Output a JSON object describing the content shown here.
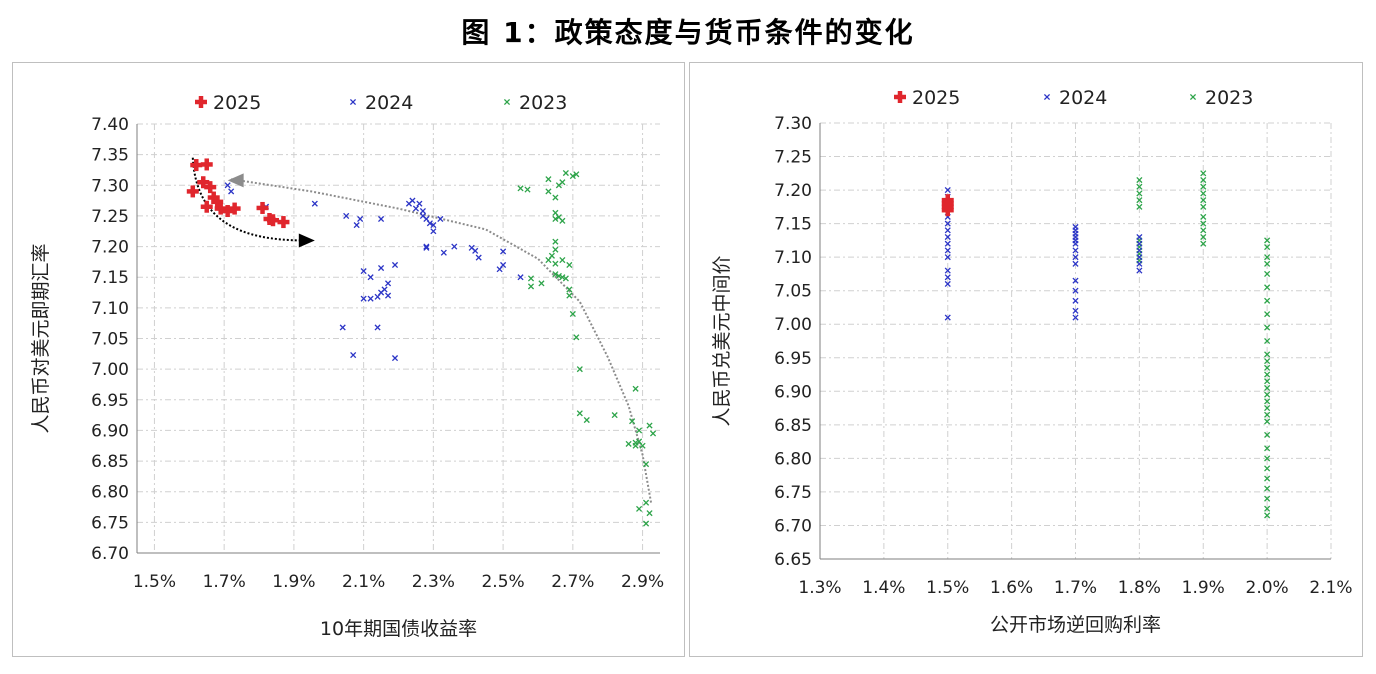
{
  "figure": {
    "title": "图 1：政策态度与货币条件的变化"
  },
  "colors": {
    "y2025": "#e0262d",
    "y2024": "#2b34c6",
    "y2023": "#2ea44a",
    "grid": "#d0d0d0",
    "axis": "#7f7f7f",
    "trend": "#8c8c8c",
    "arrow": "#000000"
  },
  "chart_data": [
    {
      "type": "scatter",
      "ylabel": "人民币对美元即期汇率",
      "xlabel": "10年期国债收益率",
      "xlim": [
        1.45,
        2.95
      ],
      "ylim": [
        6.7,
        7.4
      ],
      "x_ticks": [
        1.5,
        1.7,
        1.9,
        2.1,
        2.3,
        2.5,
        2.7,
        2.9
      ],
      "x_tick_labels": [
        "1.5%",
        "1.7%",
        "1.9%",
        "2.1%",
        "2.3%",
        "2.5%",
        "2.7%",
        "2.9%"
      ],
      "y_ticks": [
        6.7,
        6.75,
        6.8,
        6.85,
        6.9,
        6.95,
        7.0,
        7.05,
        7.1,
        7.15,
        7.2,
        7.25,
        7.3,
        7.35,
        7.4
      ],
      "y_tick_labels": [
        "6.70",
        "6.75",
        "6.80",
        "6.85",
        "6.90",
        "6.95",
        "7.00",
        "7.05",
        "7.10",
        "7.15",
        "7.20",
        "7.25",
        "7.30",
        "7.35",
        "7.40"
      ],
      "legend_position": "top",
      "series": [
        {
          "name": "2025",
          "marker": "plus",
          "color": "#e0262d",
          "points": [
            [
              1.62,
              7.333
            ],
            [
              1.65,
              7.334
            ],
            [
              1.64,
              7.305
            ],
            [
              1.66,
              7.297
            ],
            [
              1.61,
              7.29
            ],
            [
              1.67,
              7.28
            ],
            [
              1.68,
              7.273
            ],
            [
              1.65,
              7.265
            ],
            [
              1.69,
              7.262
            ],
            [
              1.71,
              7.258
            ],
            [
              1.73,
              7.262
            ],
            [
              1.81,
              7.263
            ],
            [
              1.83,
              7.245
            ],
            [
              1.84,
              7.243
            ],
            [
              1.87,
              7.24
            ]
          ]
        },
        {
          "name": "2024",
          "marker": "x",
          "color": "#2b34c6",
          "points": [
            [
              1.71,
              7.3
            ],
            [
              1.72,
              7.29
            ],
            [
              1.82,
              7.265
            ],
            [
              1.96,
              7.27
            ],
            [
              2.05,
              7.25
            ],
            [
              2.09,
              7.245
            ],
            [
              2.08,
              7.235
            ],
            [
              2.15,
              7.245
            ],
            [
              2.23,
              7.27
            ],
            [
              2.24,
              7.275
            ],
            [
              2.25,
              7.262
            ],
            [
              2.26,
              7.27
            ],
            [
              2.27,
              7.25
            ],
            [
              2.27,
              7.258
            ],
            [
              2.28,
              7.245
            ],
            [
              2.29,
              7.238
            ],
            [
              2.3,
              7.235
            ],
            [
              2.3,
              7.225
            ],
            [
              2.32,
              7.245
            ],
            [
              2.28,
              7.2
            ],
            [
              2.28,
              7.198
            ],
            [
              2.33,
              7.19
            ],
            [
              2.36,
              7.2
            ],
            [
              2.41,
              7.198
            ],
            [
              2.42,
              7.193
            ],
            [
              2.43,
              7.182
            ],
            [
              2.5,
              7.192
            ],
            [
              2.5,
              7.17
            ],
            [
              2.49,
              7.163
            ],
            [
              2.55,
              7.15
            ],
            [
              2.1,
              7.16
            ],
            [
              2.15,
              7.165
            ],
            [
              2.19,
              7.17
            ],
            [
              2.12,
              7.15
            ],
            [
              2.17,
              7.14
            ],
            [
              2.16,
              7.13
            ],
            [
              2.15,
              7.125
            ],
            [
              2.17,
              7.12
            ],
            [
              2.1,
              7.115
            ],
            [
              2.12,
              7.115
            ],
            [
              2.14,
              7.118
            ],
            [
              2.04,
              7.068
            ],
            [
              2.14,
              7.068
            ],
            [
              2.07,
              7.023
            ],
            [
              2.19,
              7.018
            ]
          ]
        },
        {
          "name": "2023",
          "marker": "x",
          "color": "#2ea44a",
          "points": [
            [
              2.55,
              7.295
            ],
            [
              2.57,
              7.293
            ],
            [
              2.63,
              7.31
            ],
            [
              2.66,
              7.3
            ],
            [
              2.67,
              7.305
            ],
            [
              2.68,
              7.32
            ],
            [
              2.7,
              7.315
            ],
            [
              2.71,
              7.318
            ],
            [
              2.63,
              7.29
            ],
            [
              2.65,
              7.28
            ],
            [
              2.65,
              7.255
            ],
            [
              2.66,
              7.248
            ],
            [
              2.65,
              7.245
            ],
            [
              2.67,
              7.242
            ],
            [
              2.65,
              7.208
            ],
            [
              2.65,
              7.195
            ],
            [
              2.64,
              7.185
            ],
            [
              2.63,
              7.178
            ],
            [
              2.65,
              7.172
            ],
            [
              2.67,
              7.178
            ],
            [
              2.69,
              7.17
            ],
            [
              2.65,
              7.155
            ],
            [
              2.66,
              7.152
            ],
            [
              2.67,
              7.15
            ],
            [
              2.68,
              7.148
            ],
            [
              2.58,
              7.148
            ],
            [
              2.61,
              7.14
            ],
            [
              2.58,
              7.135
            ],
            [
              2.69,
              7.13
            ],
            [
              2.69,
              7.12
            ],
            [
              2.7,
              7.09
            ],
            [
              2.71,
              7.052
            ],
            [
              2.72,
              7.0
            ],
            [
              2.72,
              6.928
            ],
            [
              2.74,
              6.917
            ],
            [
              2.82,
              6.925
            ],
            [
              2.87,
              6.915
            ],
            [
              2.88,
              6.88
            ],
            [
              2.86,
              6.878
            ],
            [
              2.89,
              6.882
            ],
            [
              2.88,
              6.875
            ],
            [
              2.9,
              6.875
            ],
            [
              2.89,
              6.9
            ],
            [
              2.92,
              6.908
            ],
            [
              2.93,
              6.895
            ],
            [
              2.88,
              6.968
            ],
            [
              2.91,
              6.845
            ],
            [
              2.89,
              6.772
            ],
            [
              2.91,
              6.782
            ],
            [
              2.91,
              6.748
            ],
            [
              2.92,
              6.765
            ]
          ]
        }
      ],
      "annotations": [
        "dotted trend curve",
        "black arrow",
        "grey arrow"
      ]
    },
    {
      "type": "scatter",
      "ylabel": "人民币兑美元中间价",
      "xlabel": "公开市场逆回购利率",
      "xlim": [
        1.3,
        2.1
      ],
      "ylim": [
        6.65,
        7.3
      ],
      "x_ticks": [
        1.3,
        1.4,
        1.5,
        1.6,
        1.7,
        1.8,
        1.9,
        2.0,
        2.1
      ],
      "x_tick_labels": [
        "1.3%",
        "1.4%",
        "1.5%",
        "1.6%",
        "1.7%",
        "1.8%",
        "1.9%",
        "2.0%",
        "2.1%"
      ],
      "y_ticks": [
        6.65,
        6.7,
        6.75,
        6.8,
        6.85,
        6.9,
        6.95,
        7.0,
        7.05,
        7.1,
        7.15,
        7.2,
        7.25,
        7.3
      ],
      "y_tick_labels": [
        "6.65",
        "6.70",
        "6.75",
        "6.80",
        "6.85",
        "6.90",
        "6.95",
        "7.00",
        "7.05",
        "7.10",
        "7.15",
        "7.20",
        "7.25",
        "7.30"
      ],
      "legend_position": "top",
      "series": [
        {
          "name": "2025",
          "marker": "plus",
          "color": "#e0262d",
          "points": [
            [
              1.5,
              7.17
            ],
            [
              1.5,
              7.175
            ],
            [
              1.5,
              7.18
            ],
            [
              1.5,
              7.185
            ]
          ]
        },
        {
          "name": "2024",
          "marker": "x",
          "color": "#2b34c6",
          "points": [
            [
              1.5,
              7.2
            ],
            [
              1.5,
              7.19
            ],
            [
              1.5,
              7.16
            ],
            [
              1.5,
              7.15
            ],
            [
              1.5,
              7.14
            ],
            [
              1.5,
              7.13
            ],
            [
              1.5,
              7.12
            ],
            [
              1.5,
              7.11
            ],
            [
              1.5,
              7.1
            ],
            [
              1.5,
              7.08
            ],
            [
              1.5,
              7.07
            ],
            [
              1.5,
              7.06
            ],
            [
              1.5,
              7.01
            ],
            [
              1.7,
              7.145
            ],
            [
              1.7,
              7.14
            ],
            [
              1.7,
              7.135
            ],
            [
              1.7,
              7.13
            ],
            [
              1.7,
              7.125
            ],
            [
              1.7,
              7.12
            ],
            [
              1.7,
              7.11
            ],
            [
              1.7,
              7.1
            ],
            [
              1.7,
              7.09
            ],
            [
              1.7,
              7.065
            ],
            [
              1.7,
              7.05
            ],
            [
              1.7,
              7.035
            ],
            [
              1.7,
              7.02
            ],
            [
              1.7,
              7.01
            ],
            [
              1.8,
              7.13
            ],
            [
              1.8,
              7.12
            ],
            [
              1.8,
              7.11
            ],
            [
              1.8,
              7.1
            ],
            [
              1.8,
              7.09
            ],
            [
              1.8,
              7.08
            ]
          ]
        },
        {
          "name": "2023",
          "marker": "x",
          "color": "#2ea44a",
          "points": [
            [
              1.8,
              7.215
            ],
            [
              1.8,
              7.205
            ],
            [
              1.8,
              7.195
            ],
            [
              1.8,
              7.185
            ],
            [
              1.8,
              7.175
            ],
            [
              1.8,
              7.125
            ],
            [
              1.8,
              7.115
            ],
            [
              1.8,
              7.105
            ],
            [
              1.8,
              7.095
            ],
            [
              1.9,
              7.225
            ],
            [
              1.9,
              7.215
            ],
            [
              1.9,
              7.205
            ],
            [
              1.9,
              7.195
            ],
            [
              1.9,
              7.185
            ],
            [
              1.9,
              7.175
            ],
            [
              1.9,
              7.16
            ],
            [
              1.9,
              7.15
            ],
            [
              1.9,
              7.14
            ],
            [
              1.9,
              7.13
            ],
            [
              1.9,
              7.12
            ],
            [
              2.0,
              7.125
            ],
            [
              2.0,
              7.115
            ],
            [
              2.0,
              7.1
            ],
            [
              2.0,
              7.09
            ],
            [
              2.0,
              7.075
            ],
            [
              2.0,
              7.055
            ],
            [
              2.0,
              7.035
            ],
            [
              2.0,
              7.015
            ],
            [
              2.0,
              6.995
            ],
            [
              2.0,
              6.975
            ],
            [
              2.0,
              6.955
            ],
            [
              2.0,
              6.945
            ],
            [
              2.0,
              6.935
            ],
            [
              2.0,
              6.925
            ],
            [
              2.0,
              6.915
            ],
            [
              2.0,
              6.905
            ],
            [
              2.0,
              6.895
            ],
            [
              2.0,
              6.885
            ],
            [
              2.0,
              6.875
            ],
            [
              2.0,
              6.865
            ],
            [
              2.0,
              6.855
            ],
            [
              2.0,
              6.835
            ],
            [
              2.0,
              6.815
            ],
            [
              2.0,
              6.8
            ],
            [
              2.0,
              6.785
            ],
            [
              2.0,
              6.77
            ],
            [
              2.0,
              6.755
            ],
            [
              2.0,
              6.74
            ],
            [
              2.0,
              6.725
            ],
            [
              2.0,
              6.715
            ]
          ]
        }
      ]
    }
  ]
}
